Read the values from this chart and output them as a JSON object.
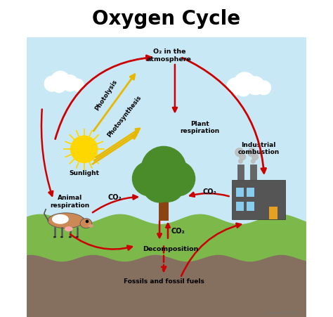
{
  "title": "Oxygen Cycle",
  "title_fontsize": 20,
  "title_fontweight": "bold",
  "sky_color": "#c8e8f5",
  "white_color": "#ffffff",
  "ground_color": "#7cb84a",
  "soil_color": "#857060",
  "arrow_red": "#cc0000",
  "arrow_gold": "#e8b800",
  "labels": {
    "o2_atm": "O₂ in the\natmosphere",
    "photolysis": "Photolysis",
    "photosynthesis": "Photosynthesis",
    "sunlight": "Sunlight",
    "plant_resp": "Plant\nrespiration",
    "animal_resp": "Animal\nrespiration",
    "industrial": "Industrial\ncombustion",
    "decomp": "Decomposition",
    "fossils": "Fossils and fossil fuels",
    "co2_left": "CO₂",
    "co2_right": "CO₂",
    "co2_bottom": "CO₂"
  },
  "watermark": "ScienceFacts.net",
  "figsize": [
    4.74,
    4.52
  ],
  "dpi": 100
}
